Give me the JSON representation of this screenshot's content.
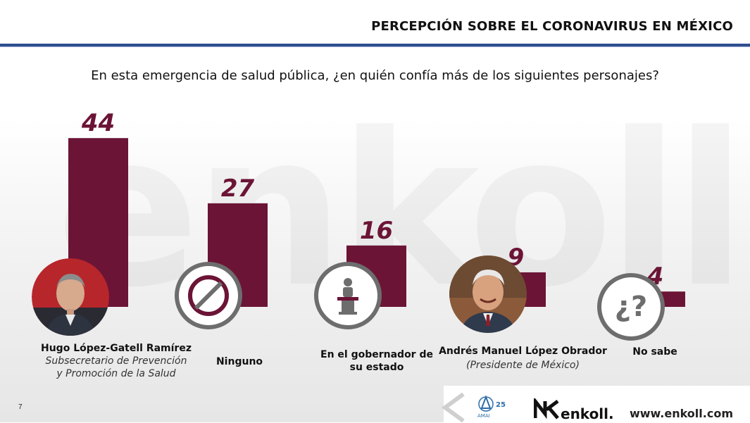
{
  "header": {
    "title": "PERCEPCIÓN SOBRE EL CORONAVIRUS EN MÉXICO"
  },
  "question": "En esta emergencia de salud pública, ¿en quién confía más de los siguientes personajes?",
  "watermark": "enkoll.",
  "chart_data": {
    "type": "bar",
    "categories": [
      "Hugo López-Gatell Ramírez",
      "Ninguno",
      "En el gobernador de su estado",
      "Andrés Manuel López Obrador",
      "No sabe"
    ],
    "values": [
      44,
      27,
      16,
      9,
      4
    ],
    "value_labels": [
      "44",
      "27",
      "16",
      "9",
      "4"
    ],
    "bar_color": "#6b1436",
    "ylim": [
      0,
      50
    ],
    "title": "",
    "xlabel": "",
    "ylabel": ""
  },
  "labels": {
    "c0_name": "Hugo López-Gatell Ramírez",
    "c0_sub1": "Subsecretario de Prevención",
    "c0_sub2": "y Promoción de la Salud",
    "c1_name": "Ninguno",
    "c2_name1": "En el gobernador de",
    "c2_name2": "su estado",
    "c3_name": "Andrés Manuel López Obrador",
    "c3_sub": "(Presidente de México)",
    "c4_name": "No sabe"
  },
  "icons": {
    "c0": "portrait-photo",
    "c1": "prohibited-icon",
    "c2": "podium-speaker-icon",
    "c3": "portrait-photo",
    "c4": "question-marks-icon"
  },
  "footer": {
    "page": "7",
    "logo1_text": "AMAI",
    "logo1_badge": "25",
    "brand": "enkoll.",
    "url": "www.enkoll.com"
  }
}
